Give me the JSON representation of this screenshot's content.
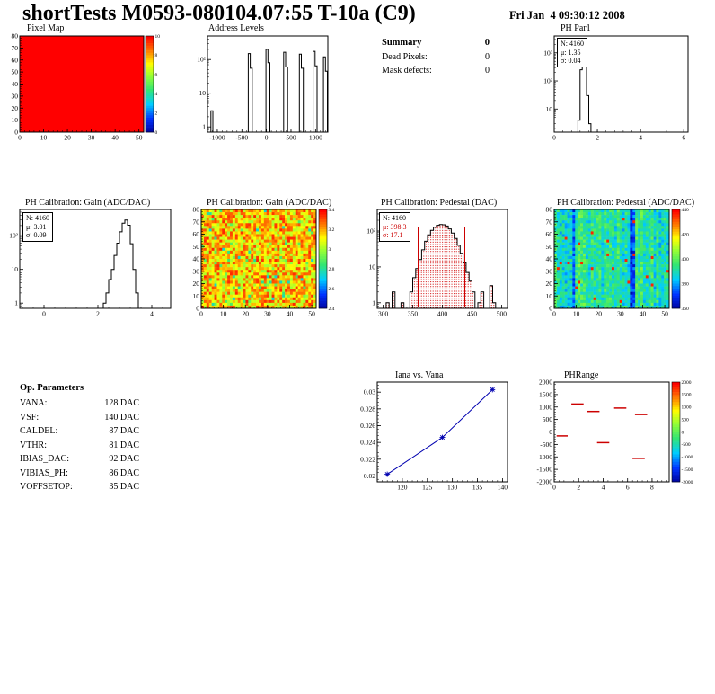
{
  "header": {
    "title": "shortTests M0593-080104.07:55 T-10a (C9)",
    "date": "Fri Jan  4 09:30:12 2008"
  },
  "summary": {
    "title": "Summary",
    "title_value": "0",
    "rows": [
      {
        "label": "Dead Pixels:",
        "value": "0"
      },
      {
        "label": "Mask defects:",
        "value": "0"
      }
    ]
  },
  "op_parameters": {
    "title": "Op. Parameters",
    "rows": [
      {
        "label": "VANA:",
        "value": "128 DAC"
      },
      {
        "label": "VSF:",
        "value": "140 DAC"
      },
      {
        "label": "CALDEL:",
        "value": "87 DAC"
      },
      {
        "label": "VTHR:",
        "value": "81 DAC"
      },
      {
        "label": "IBIAS_DAC:",
        "value": "92 DAC"
      },
      {
        "label": "VIBIAS_PH:",
        "value": "86 DAC"
      },
      {
        "label": "VOFFSETOP:",
        "value": "35 DAC"
      }
    ]
  },
  "chart_data": [
    {
      "id": "pixel-map",
      "type": "heatmap",
      "title": "Pixel Map",
      "xlim": [
        0,
        52
      ],
      "xticks": [
        0,
        10,
        20,
        30,
        40,
        50
      ],
      "ylim": [
        0,
        80
      ],
      "yticks": [
        0,
        10,
        20,
        30,
        40,
        50,
        60,
        70,
        80
      ],
      "uniform": true,
      "value": 10,
      "colorbar": {
        "labels": [
          "10",
          "8",
          "6",
          "4",
          "2",
          "0"
        ]
      }
    },
    {
      "id": "address-levels",
      "type": "histogram",
      "title": "Address Levels",
      "xlim": [
        -1200,
        1250
      ],
      "xticks": [
        -1000,
        -500,
        0,
        500,
        1000
      ],
      "ylog": true,
      "ylim": [
        0.7,
        500
      ],
      "yticks": [
        1,
        10,
        100
      ],
      "ytick_labels": [
        "1",
        "10",
        "10²"
      ],
      "bin_width": 40,
      "bins": [
        [
          -1130,
          3
        ],
        [
          -370,
          150
        ],
        [
          -330,
          55
        ],
        [
          -10,
          200
        ],
        [
          30,
          80
        ],
        [
          350,
          165
        ],
        [
          390,
          60
        ],
        [
          670,
          145
        ],
        [
          710,
          55
        ],
        [
          950,
          175
        ],
        [
          990,
          65
        ],
        [
          1160,
          120
        ],
        [
          1200,
          45
        ]
      ]
    },
    {
      "id": "ph-par1",
      "type": "histogram",
      "title": "PH Par1",
      "stats": {
        "n": "N: 4160",
        "mu": "μ: 1.35",
        "sigma": "σ: 0.04"
      },
      "xlim": [
        0,
        6.2
      ],
      "xticks": [
        0,
        2,
        4,
        6
      ],
      "ylog": true,
      "ylim": [
        1.5,
        4000
      ],
      "yticks": [
        10,
        100,
        1000
      ],
      "ytick_labels": [
        "10",
        "10²",
        "10³"
      ],
      "bin_width": 0.1,
      "bins": [
        [
          1.1,
          4
        ],
        [
          1.2,
          250
        ],
        [
          1.3,
          2200
        ],
        [
          1.4,
          700
        ],
        [
          1.5,
          30
        ],
        [
          1.6,
          3
        ]
      ]
    },
    {
      "id": "gain-hist",
      "type": "histogram",
      "title": "PH Calibration: Gain (ADC/DAC)",
      "stats": {
        "n": "N: 4160",
        "mu": "μ: 3.01",
        "sigma": "σ: 0.09"
      },
      "xlim": [
        -0.9,
        4.7
      ],
      "xticks": [
        0,
        2,
        4
      ],
      "ylog": true,
      "ylim": [
        0.7,
        600
      ],
      "yticks": [
        1,
        10,
        100
      ],
      "ytick_labels": [
        "1",
        "10",
        "10²"
      ],
      "bin_width": 0.1,
      "bins": [
        [
          2.2,
          1
        ],
        [
          2.3,
          2
        ],
        [
          2.4,
          5
        ],
        [
          2.5,
          10
        ],
        [
          2.6,
          26
        ],
        [
          2.7,
          60
        ],
        [
          2.8,
          130
        ],
        [
          2.9,
          235
        ],
        [
          3.0,
          290
        ],
        [
          3.1,
          205
        ],
        [
          3.2,
          58
        ],
        [
          3.3,
          10
        ],
        [
          3.4,
          2
        ]
      ]
    },
    {
      "id": "gain-map",
      "type": "heatmap",
      "title": "PH Calibration: Gain (ADC/DAC)",
      "xlim": [
        0,
        52
      ],
      "xticks": [
        0,
        10,
        20,
        30,
        40,
        50
      ],
      "ylim": [
        0,
        80
      ],
      "yticks": [
        0,
        10,
        20,
        30,
        40,
        50,
        60,
        70,
        80
      ],
      "noise": {
        "seed": 7,
        "base": 0.78,
        "spread": 0.36,
        "cold_frac": 0.07,
        "cold_drop": 0.26
      },
      "colorbar": {
        "labels": [
          "3.4",
          "3.2",
          "3",
          "2.8",
          "2.6",
          "2.4"
        ]
      }
    },
    {
      "id": "pedestal-hist",
      "type": "histogram",
      "title": "PH Calibration: Pedestal (DAC)",
      "stats": {
        "n": "N: 4160",
        "mu": "μ: 398.3",
        "sigma": "σ: 17.1"
      },
      "xlim": [
        290,
        510
      ],
      "xticks": [
        300,
        350,
        400,
        450,
        500
      ],
      "ylog": true,
      "ylim": [
        0.7,
        400
      ],
      "yticks": [
        1,
        10,
        100
      ],
      "ytick_labels": [
        "1",
        "10",
        "10²"
      ],
      "bin_width": 5,
      "hatch": true,
      "cut_lines": [
        359,
        438
      ],
      "cut_line_top": 130,
      "bins": [
        [
          305,
          1
        ],
        [
          315,
          2
        ],
        [
          330,
          1
        ],
        [
          345,
          2
        ],
        [
          350,
          5
        ],
        [
          355,
          9
        ],
        [
          360,
          16
        ],
        [
          365,
          30
        ],
        [
          370,
          52
        ],
        [
          375,
          78
        ],
        [
          380,
          105
        ],
        [
          385,
          128
        ],
        [
          390,
          145
        ],
        [
          395,
          152
        ],
        [
          400,
          150
        ],
        [
          405,
          138
        ],
        [
          410,
          115
        ],
        [
          415,
          88
        ],
        [
          420,
          62
        ],
        [
          425,
          40
        ],
        [
          430,
          24
        ],
        [
          435,
          13
        ],
        [
          440,
          7
        ],
        [
          445,
          4
        ],
        [
          450,
          2
        ],
        [
          460,
          1
        ],
        [
          465,
          2
        ],
        [
          480,
          3
        ],
        [
          485,
          1
        ]
      ]
    },
    {
      "id": "pedestal-map",
      "type": "heatmap",
      "title": "PH Calibration: Pedestal (ADC/DAC)",
      "xlim": [
        0,
        52
      ],
      "xticks": [
        0,
        10,
        20,
        30,
        40,
        50
      ],
      "ylim": [
        0,
        80
      ],
      "yticks": [
        0,
        10,
        20,
        30,
        40,
        50,
        60,
        70,
        80
      ],
      "noise": {
        "seed": 13,
        "base": 0.42,
        "spread": 0.22,
        "column_effect": 0.16,
        "dark_cols": [
          7,
          29,
          30
        ],
        "hot_frac": 0.01
      },
      "colorbar": {
        "labels": [
          "440",
          "420",
          "400",
          "380",
          "360"
        ]
      }
    },
    {
      "id": "iana-vana",
      "type": "line",
      "title": "Iana vs. Vana",
      "xlim": [
        115,
        141
      ],
      "xticks": [
        120,
        125,
        130,
        135,
        140
      ],
      "ylim": [
        0.0193,
        0.0312
      ],
      "yticks": [
        0.02,
        0.022,
        0.024,
        0.026,
        0.028,
        0.03
      ],
      "ytick_labels": [
        "0.02",
        "0.022",
        "0.024",
        "0.026",
        "0.028",
        "0.03"
      ],
      "x": [
        117,
        128,
        138
      ],
      "y": [
        0.0202,
        0.0246,
        0.0303
      ],
      "line_color": "#0000b0",
      "marker": "star"
    },
    {
      "id": "ph-range",
      "type": "dashes",
      "title": "PHRange",
      "xlim": [
        0,
        9.4
      ],
      "xticks": [
        0,
        2,
        4,
        6,
        8
      ],
      "ylim": [
        -2000,
        2000
      ],
      "yticks": [
        2000,
        1500,
        1000,
        500,
        0,
        -500,
        -1000,
        -1500,
        -2000
      ],
      "dash_color": "#cc0000",
      "dashes": [
        {
          "x1": 1.4,
          "x2": 2.4,
          "y": 1120
        },
        {
          "x1": 2.7,
          "x2": 3.7,
          "y": 820
        },
        {
          "x1": 4.9,
          "x2": 5.9,
          "y": 960
        },
        {
          "x1": 6.6,
          "x2": 7.6,
          "y": 700
        },
        {
          "x1": 0.2,
          "x2": 1.1,
          "y": -160
        },
        {
          "x1": 3.5,
          "x2": 4.5,
          "y": -430
        },
        {
          "x1": 6.4,
          "x2": 7.4,
          "y": -1060
        }
      ],
      "colorbar": {
        "labels": [
          "2000",
          "1500",
          "1000",
          "500",
          "0",
          "-500",
          "-1000",
          "-1500",
          "-2000"
        ]
      }
    }
  ]
}
